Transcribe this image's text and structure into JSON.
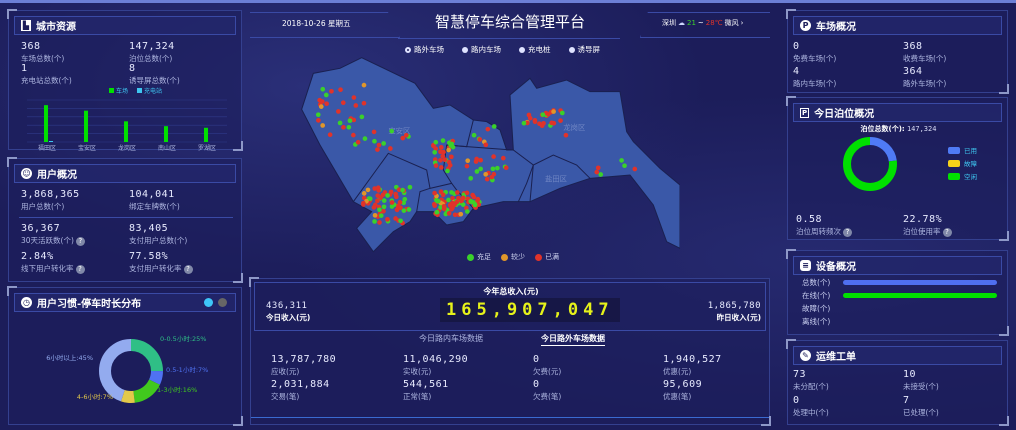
{
  "header": {
    "title": "智慧停车综合管理平台",
    "date": "2018-10-26 星期五",
    "city": "深圳",
    "temp_low": "21",
    "temp_sep": "~",
    "temp_high": "28℃",
    "wind": "微风",
    "weather_icon": "cloud-rain-icon"
  },
  "map": {
    "tabs": [
      {
        "label": "路外车场",
        "selected": true
      },
      {
        "label": "路内车场",
        "selected": false
      },
      {
        "label": "充电桩",
        "selected": false
      },
      {
        "label": "诱导屏",
        "selected": false
      }
    ],
    "districts": [
      "宝安区",
      "龙岗区",
      "盐田区"
    ],
    "legend": [
      {
        "label": "充足",
        "color": "#3ad12a"
      },
      {
        "label": "较少",
        "color": "#e0962a"
      },
      {
        "label": "已满",
        "color": "#e0332a"
      }
    ],
    "region_color": "#3a58a8"
  },
  "city": {
    "title": "城市资源",
    "stats": [
      {
        "value": "368",
        "label": "车场总数(个)"
      },
      {
        "value": "147,324",
        "label": "泊位总数(个)"
      },
      {
        "value": "1",
        "label": "充电站总数(个)"
      },
      {
        "value": "8",
        "label": "诱导屏总数(个)"
      }
    ]
  },
  "chart_data": [
    {
      "type": "bar",
      "categories": [
        "福田区",
        "宝安区",
        "龙岗区",
        "南山区",
        "罗湖区"
      ],
      "series": [
        {
          "name": "车场",
          "color": "#00e000",
          "values": [
            114,
            97,
            64,
            49,
            44
          ]
        },
        {
          "name": "充电站",
          "color": "#3ec6f0",
          "values": [
            1,
            0,
            0,
            0,
            0
          ]
        }
      ],
      "legend_position": "top",
      "grid": true
    },
    {
      "type": "pie",
      "title": "用户习惯-停车时长分布",
      "donut": true,
      "categories": [
        "0-0.5小时",
        "0.5-1小时",
        "1-3小时",
        "4-6小时",
        "6小时以上"
      ],
      "values": [
        25,
        7,
        16,
        7,
        45
      ],
      "labels": [
        "0-0.5小时:25%",
        "0.5-1小时:7%",
        "1-3小时:16%",
        "4-6小时:7%",
        "6小时以上:45%"
      ],
      "colors": [
        "#2fbf86",
        "#4f72f2",
        "#41c81e",
        "#e3c94a",
        "#93abef"
      ]
    },
    {
      "type": "pie",
      "donut": true,
      "categories": [
        "已用",
        "故障",
        "空闲"
      ],
      "values": [
        22.78,
        0,
        77.22
      ],
      "colors": [
        "#4f7bf5",
        "#f5d21a",
        "#00e000"
      ],
      "legend_position": "right"
    }
  ],
  "user": {
    "title": "用户概况",
    "stats": [
      {
        "value": "3,868,365",
        "label": "用户总数(个)"
      },
      {
        "value": "104,041",
        "label": "绑定车牌数(个)"
      },
      {
        "value": "36,367",
        "label": "30天活跃数(个)"
      },
      {
        "value": "83,405",
        "label": "支付用户总数(个)"
      },
      {
        "value": "2.84%",
        "label": "线下用户转化率"
      },
      {
        "value": "77.58%",
        "label": "支付用户转化率"
      }
    ]
  },
  "habit": {
    "title": "用户习惯-停车时长分布"
  },
  "revenue": {
    "title": "今年总收入(元)",
    "total": "165,907,047",
    "today_value": "436,311",
    "today_label": "今日收入(元)",
    "yesterday_value": "1,865,780",
    "yesterday_label": "昨日收入(元)",
    "tabs": [
      {
        "label": "今日路内车场数据",
        "selected": false
      },
      {
        "label": "今日路外车场数据",
        "selected": true
      }
    ],
    "stats": [
      {
        "value": "13,787,780",
        "label": "应收(元)"
      },
      {
        "value": "11,046,290",
        "label": "实收(元)"
      },
      {
        "value": "0",
        "label": "欠费(元)"
      },
      {
        "value": "1,940,527",
        "label": "优惠(元)"
      },
      {
        "value": "2,031,884",
        "label": "交易(笔)"
      },
      {
        "value": "544,561",
        "label": "正常(笔)"
      },
      {
        "value": "0",
        "label": "欠费(笔)"
      },
      {
        "value": "95,609",
        "label": "优惠(笔)"
      }
    ]
  },
  "lots": {
    "title": "车场概况",
    "stats": [
      {
        "value": "0",
        "label": "免费车场(个)"
      },
      {
        "value": "368",
        "label": "收费车场(个)"
      },
      {
        "value": "4",
        "label": "路内车场(个)"
      },
      {
        "value": "364",
        "label": "路外车场(个)"
      }
    ]
  },
  "berth": {
    "title": "今日泊位概况",
    "total_label": "泊位总数(个):",
    "total_value": "147,324",
    "turnover_value": "0.58",
    "turnover_label": "泊位周转频次",
    "usage_value": "22.78%",
    "usage_label": "泊位使用率"
  },
  "devices": {
    "title": "设备概况",
    "rows": [
      {
        "label": "总数(个)",
        "fill": 1.0,
        "color": "#4f6ff0"
      },
      {
        "label": "在线(个)",
        "fill": 1.0,
        "color": "#00e000"
      },
      {
        "label": "故障(个)",
        "fill": 0
      },
      {
        "label": "离线(个)",
        "fill": 0
      }
    ]
  },
  "ops": {
    "title": "运维工单",
    "stats": [
      {
        "value": "73",
        "label": "未分配(个)"
      },
      {
        "value": "10",
        "label": "未接受(个)"
      },
      {
        "value": "0",
        "label": "处理中(个)"
      },
      {
        "value": "7",
        "label": "已处理(个)"
      }
    ]
  }
}
